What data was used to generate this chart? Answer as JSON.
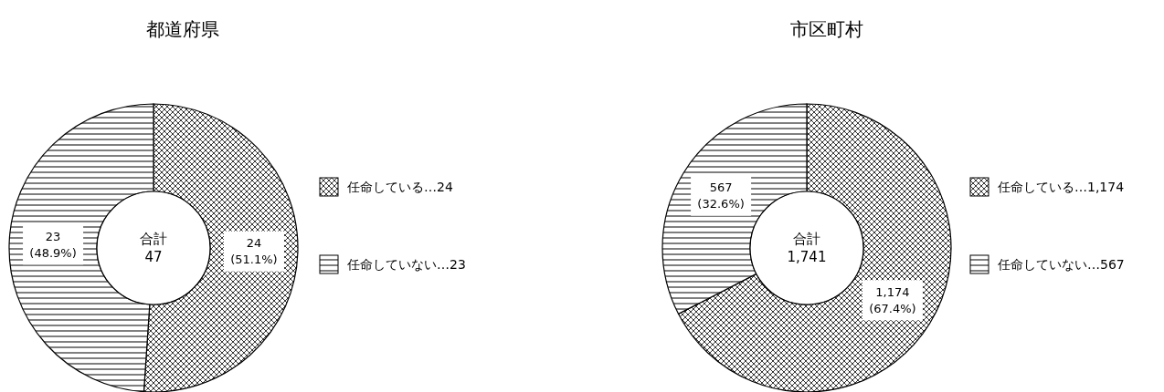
{
  "chart_data": [
    {
      "type": "donut",
      "title": "都道府県",
      "categories": [
        "任命している…24",
        "任命していない…23"
      ],
      "values": [
        24,
        23
      ],
      "colors": [
        "#000000",
        "#000000"
      ],
      "value_labels": [
        "24\n(51.1%)",
        "23\n(48.9%)"
      ],
      "annotations": [
        "合計\n47"
      ],
      "legend": "right"
    },
    {
      "type": "donut",
      "title": "市区町村",
      "categories": [
        "任命している…1,174",
        "任命していない…567"
      ],
      "values": [
        1174,
        567
      ],
      "colors": [
        "#000000",
        "#000000"
      ],
      "value_labels": [
        "1,174\n(67.4%)",
        "567\n(32.6%)"
      ],
      "annotations": [
        "合計\n1,741"
      ],
      "legend": "right"
    }
  ]
}
